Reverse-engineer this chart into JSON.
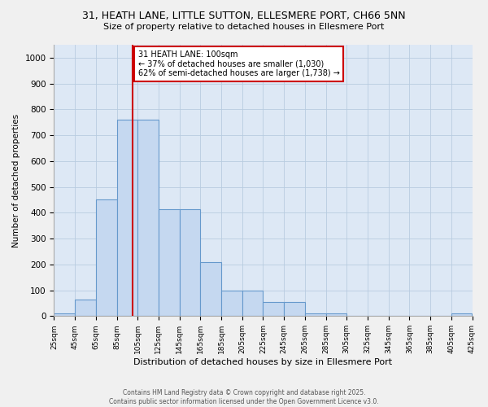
{
  "title_line1": "31, HEATH LANE, LITTLE SUTTON, ELLESMERE PORT, CH66 5NN",
  "title_line2": "Size of property relative to detached houses in Ellesmere Port",
  "xlabel": "Distribution of detached houses by size in Ellesmere Port",
  "ylabel": "Number of detached properties",
  "bin_edges": [
    25,
    45,
    65,
    85,
    105,
    125,
    145,
    165,
    185,
    205,
    225,
    245,
    265,
    285,
    305,
    325,
    345,
    365,
    385,
    405,
    425
  ],
  "bar_heights": [
    10,
    65,
    450,
    760,
    760,
    415,
    415,
    210,
    100,
    100,
    55,
    55,
    10,
    10,
    0,
    0,
    0,
    0,
    0,
    10
  ],
  "bar_color": "#c5d8f0",
  "bar_edgecolor": "#6699cc",
  "vline_x": 100,
  "vline_color": "#cc0000",
  "annotation_text": "31 HEATH LANE: 100sqm\n← 37% of detached houses are smaller (1,030)\n62% of semi-detached houses are larger (1,738) →",
  "annotation_box_facecolor": "#ffffff",
  "annotation_box_edgecolor": "#cc0000",
  "ylim": [
    0,
    1050
  ],
  "yticks": [
    0,
    100,
    200,
    300,
    400,
    500,
    600,
    700,
    800,
    900,
    1000
  ],
  "grid_color": "#b8cce0",
  "background_color": "#dde8f5",
  "fig_facecolor": "#f0f0f0",
  "footer_line1": "Contains HM Land Registry data © Crown copyright and database right 2025.",
  "footer_line2": "Contains public sector information licensed under the Open Government Licence v3.0."
}
